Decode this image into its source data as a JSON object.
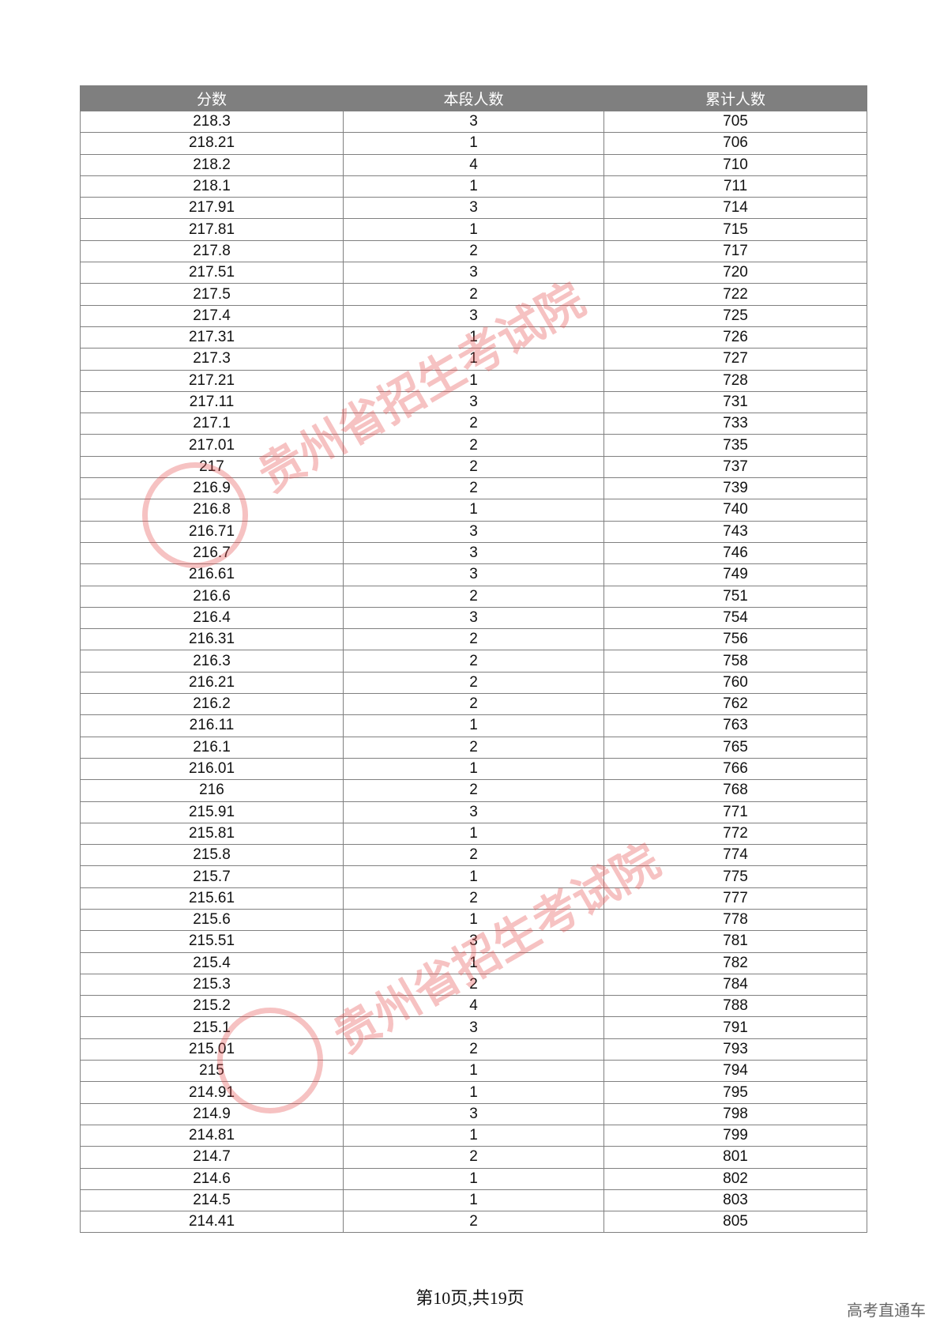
{
  "table": {
    "headers": [
      "分数",
      "本段人数",
      "累计人数"
    ],
    "rows": [
      [
        "218.3",
        "3",
        "705"
      ],
      [
        "218.21",
        "1",
        "706"
      ],
      [
        "218.2",
        "4",
        "710"
      ],
      [
        "218.1",
        "1",
        "711"
      ],
      [
        "217.91",
        "3",
        "714"
      ],
      [
        "217.81",
        "1",
        "715"
      ],
      [
        "217.8",
        "2",
        "717"
      ],
      [
        "217.51",
        "3",
        "720"
      ],
      [
        "217.5",
        "2",
        "722"
      ],
      [
        "217.4",
        "3",
        "725"
      ],
      [
        "217.31",
        "1",
        "726"
      ],
      [
        "217.3",
        "1",
        "727"
      ],
      [
        "217.21",
        "1",
        "728"
      ],
      [
        "217.11",
        "3",
        "731"
      ],
      [
        "217.1",
        "2",
        "733"
      ],
      [
        "217.01",
        "2",
        "735"
      ],
      [
        "217",
        "2",
        "737"
      ],
      [
        "216.9",
        "2",
        "739"
      ],
      [
        "216.8",
        "1",
        "740"
      ],
      [
        "216.71",
        "3",
        "743"
      ],
      [
        "216.7",
        "3",
        "746"
      ],
      [
        "216.61",
        "3",
        "749"
      ],
      [
        "216.6",
        "2",
        "751"
      ],
      [
        "216.4",
        "3",
        "754"
      ],
      [
        "216.31",
        "2",
        "756"
      ],
      [
        "216.3",
        "2",
        "758"
      ],
      [
        "216.21",
        "2",
        "760"
      ],
      [
        "216.2",
        "2",
        "762"
      ],
      [
        "216.11",
        "1",
        "763"
      ],
      [
        "216.1",
        "2",
        "765"
      ],
      [
        "216.01",
        "1",
        "766"
      ],
      [
        "216",
        "2",
        "768"
      ],
      [
        "215.91",
        "3",
        "771"
      ],
      [
        "215.81",
        "1",
        "772"
      ],
      [
        "215.8",
        "2",
        "774"
      ],
      [
        "215.7",
        "1",
        "775"
      ],
      [
        "215.61",
        "2",
        "777"
      ],
      [
        "215.6",
        "1",
        "778"
      ],
      [
        "215.51",
        "3",
        "781"
      ],
      [
        "215.4",
        "1",
        "782"
      ],
      [
        "215.3",
        "2",
        "784"
      ],
      [
        "215.2",
        "4",
        "788"
      ],
      [
        "215.1",
        "3",
        "791"
      ],
      [
        "215.01",
        "2",
        "793"
      ],
      [
        "215",
        "1",
        "794"
      ],
      [
        "214.91",
        "1",
        "795"
      ],
      [
        "214.9",
        "3",
        "798"
      ],
      [
        "214.81",
        "1",
        "799"
      ],
      [
        "214.7",
        "2",
        "801"
      ],
      [
        "214.6",
        "1",
        "802"
      ],
      [
        "214.5",
        "1",
        "803"
      ],
      [
        "214.41",
        "2",
        "805"
      ]
    ]
  },
  "footer": {
    "page_info": "第10页,共19页",
    "brand": "高考直通车"
  },
  "watermark": {
    "text": "贵州省招生考试院",
    "color": "#e65050"
  },
  "colors": {
    "header_bg": "#7f7f7f",
    "border": "#808080"
  }
}
